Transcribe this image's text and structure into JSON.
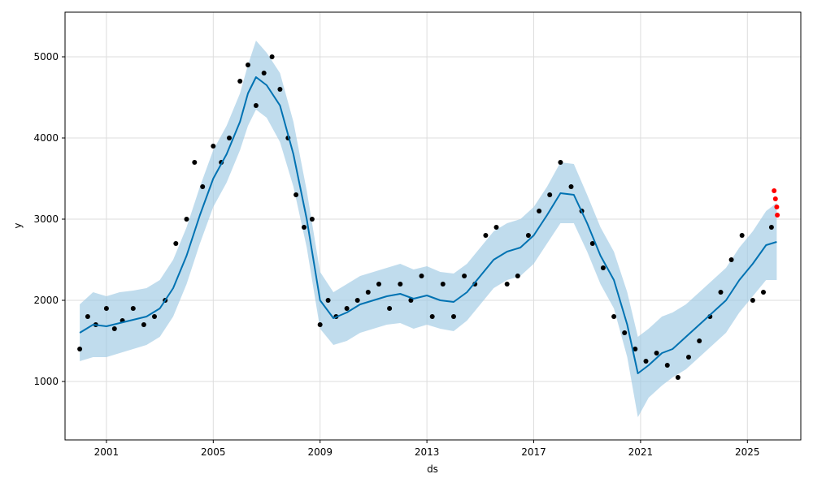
{
  "chart_data": {
    "type": "scatter",
    "title": "",
    "xlabel": "ds",
    "ylabel": "y",
    "grid": true,
    "xlim": [
      1999.45,
      2027.0
    ],
    "ylim": [
      280,
      5550
    ],
    "x_ticks": [
      2001,
      2005,
      2009,
      2013,
      2017,
      2021,
      2025
    ],
    "x_tick_labels": [
      "2001",
      "2005",
      "2009",
      "2013",
      "2017",
      "2021",
      "2025"
    ],
    "y_ticks": [
      1000,
      2000,
      3000,
      4000,
      5000
    ],
    "y_tick_labels": [
      "1000",
      "2000",
      "3000",
      "4000",
      "5000"
    ],
    "colors": {
      "observed": "#000000",
      "forecast_points": "#ff0000",
      "trend": "#0072B2",
      "uncertainty": "#9ec9e3",
      "grid": "#dddddd"
    },
    "forecast": {
      "x": [
        2000.0,
        2000.5,
        2001.0,
        2001.5,
        2002.0,
        2002.5,
        2003.0,
        2003.5,
        2004.0,
        2004.5,
        2005.0,
        2005.5,
        2006.0,
        2006.3,
        2006.6,
        2007.0,
        2007.5,
        2008.0,
        2008.5,
        2009.0,
        2009.5,
        2010.0,
        2010.5,
        2011.0,
        2011.5,
        2012.0,
        2012.5,
        2013.0,
        2013.5,
        2014.0,
        2014.5,
        2015.0,
        2015.5,
        2016.0,
        2016.5,
        2017.0,
        2017.5,
        2018.0,
        2018.5,
        2019.0,
        2019.5,
        2020.0,
        2020.5,
        2020.9,
        2021.3,
        2021.8,
        2022.2,
        2022.7,
        2023.2,
        2023.7,
        2024.2,
        2024.7,
        2025.2,
        2025.7,
        2026.1
      ],
      "yhat": [
        1600,
        1700,
        1680,
        1720,
        1760,
        1800,
        1900,
        2150,
        2550,
        3050,
        3500,
        3800,
        4200,
        4550,
        4750,
        4650,
        4400,
        3800,
        3000,
        2000,
        1780,
        1850,
        1950,
        2000,
        2050,
        2080,
        2020,
        2060,
        2000,
        1980,
        2100,
        2300,
        2500,
        2600,
        2650,
        2800,
        3050,
        3320,
        3300,
        2950,
        2550,
        2250,
        1700,
        1100,
        1200,
        1350,
        1400,
        1550,
        1700,
        1850,
        2000,
        2250,
        2450,
        2680,
        2720
      ],
      "lower": [
        1250,
        1300,
        1300,
        1350,
        1400,
        1450,
        1550,
        1800,
        2200,
        2700,
        3150,
        3450,
        3850,
        4150,
        4350,
        4250,
        3950,
        3400,
        2650,
        1650,
        1450,
        1500,
        1600,
        1650,
        1700,
        1720,
        1650,
        1700,
        1650,
        1620,
        1750,
        1950,
        2150,
        2250,
        2300,
        2450,
        2700,
        2950,
        2950,
        2600,
        2200,
        1900,
        1300,
        560,
        800,
        950,
        1050,
        1150,
        1300,
        1450,
        1600,
        1850,
        2050,
        2250,
        2250
      ],
      "upper": [
        1950,
        2100,
        2050,
        2100,
        2120,
        2150,
        2250,
        2500,
        2900,
        3400,
        3850,
        4150,
        4550,
        4900,
        5200,
        5050,
        4800,
        4200,
        3350,
        2350,
        2100,
        2200,
        2300,
        2350,
        2400,
        2450,
        2380,
        2420,
        2350,
        2330,
        2450,
        2650,
        2850,
        2950,
        3000,
        3150,
        3400,
        3700,
        3680,
        3300,
        2900,
        2600,
        2100,
        1550,
        1650,
        1800,
        1850,
        1950,
        2100,
        2250,
        2400,
        2650,
        2850,
        3100,
        3200
      ]
    },
    "observed": {
      "x": [
        2000.0,
        2000.3,
        2000.6,
        2001.0,
        2001.3,
        2001.6,
        2002.0,
        2002.4,
        2002.8,
        2003.2,
        2003.6,
        2004.0,
        2004.3,
        2004.6,
        2005.0,
        2005.3,
        2005.6,
        2006.0,
        2006.3,
        2006.6,
        2006.9,
        2007.2,
        2007.5,
        2007.8,
        2008.1,
        2008.4,
        2008.7,
        2009.0,
        2009.3,
        2009.6,
        2010.0,
        2010.4,
        2010.8,
        2011.2,
        2011.6,
        2012.0,
        2012.4,
        2012.8,
        2013.2,
        2013.6,
        2014.0,
        2014.4,
        2014.8,
        2015.2,
        2015.6,
        2016.0,
        2016.4,
        2016.8,
        2017.2,
        2017.6,
        2018.0,
        2018.4,
        2018.8,
        2019.2,
        2019.6,
        2020.0,
        2020.4,
        2020.8,
        2021.2,
        2021.6,
        2022.0,
        2022.4,
        2022.8,
        2023.2,
        2023.6,
        2024.0,
        2024.4,
        2024.8,
        2025.2,
        2025.6,
        2025.9
      ],
      "y": [
        1400,
        1800,
        1700,
        1900,
        1650,
        1750,
        1900,
        1700,
        1800,
        2000,
        2700,
        3000,
        3700,
        3400,
        3900,
        3700,
        4000,
        4700,
        4900,
        4400,
        4800,
        5000,
        4600,
        4000,
        3300,
        2900,
        3000,
        1700,
        2000,
        1800,
        1900,
        2000,
        2100,
        2200,
        1900,
        2200,
        2000,
        2300,
        1800,
        2200,
        1800,
        2300,
        2200,
        2800,
        2900,
        2200,
        2300,
        2800,
        3100,
        3300,
        3700,
        3400,
        3100,
        2700,
        2400,
        1800,
        1600,
        1400,
        1250,
        1350,
        1200,
        1050,
        1300,
        1500,
        1800,
        2100,
        2500,
        2800,
        2000,
        2100,
        2900
      ]
    },
    "forecast_points": {
      "x": [
        2026.0,
        2026.05,
        2026.1,
        2026.12
      ],
      "y": [
        3350,
        3250,
        3150,
        3050
      ]
    }
  }
}
